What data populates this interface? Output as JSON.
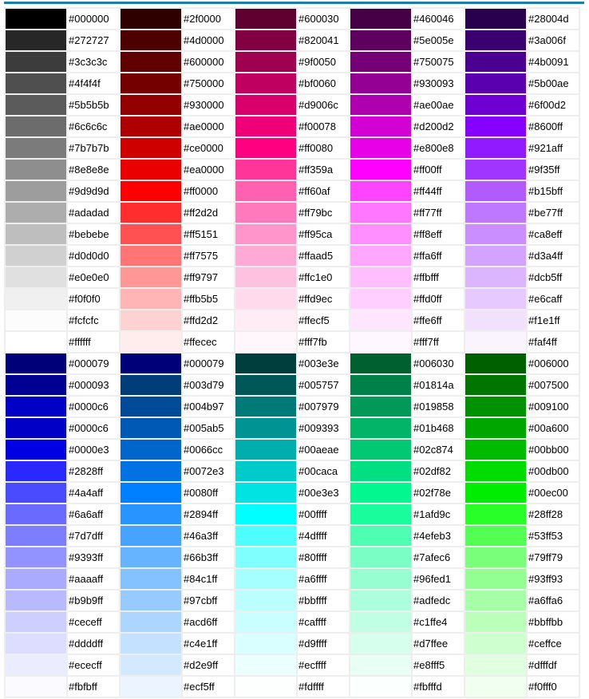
{
  "accent_color": "#1a7fa8",
  "sections": [
    {
      "columns": [
        [
          "#000000",
          "#272727",
          "#3c3c3c",
          "#4f4f4f",
          "#5b5b5b",
          "#6c6c6c",
          "#7b7b7b",
          "#8e8e8e",
          "#9d9d9d",
          "#adadad",
          "#bebebe",
          "#d0d0d0",
          "#e0e0e0",
          "#f0f0f0",
          "#fcfcfc",
          "#ffffff"
        ],
        [
          "#2f0000",
          "#4d0000",
          "#600000",
          "#750000",
          "#930000",
          "#ae0000",
          "#ce0000",
          "#ea0000",
          "#ff0000",
          "#ff2d2d",
          "#ff5151",
          "#ff7575",
          "#ff9797",
          "#ffb5b5",
          "#ffd2d2",
          "#ffecec"
        ],
        [
          "#600030",
          "#820041",
          "#9f0050",
          "#bf0060",
          "#d9006c",
          "#f00078",
          "#ff0080",
          "#ff359a",
          "#ff60af",
          "#ff79bc",
          "#ff95ca",
          "#ffaad5",
          "#ffc1e0",
          "#ffd9ec",
          "#ffecf5",
          "#fff7fb"
        ],
        [
          "#460046",
          "#5e005e",
          "#750075",
          "#930093",
          "#ae00ae",
          "#d200d2",
          "#e800e8",
          "#ff00ff",
          "#ff44ff",
          "#ff77ff",
          "#ff8eff",
          "#ffa6ff",
          "#ffbfff",
          "#ffd0ff",
          "#ffe6ff",
          "#fff7ff"
        ],
        [
          "#28004d",
          "#3a006f",
          "#4b0091",
          "#5b00ae",
          "#6f00d2",
          "#8600ff",
          "#921aff",
          "#9f35ff",
          "#b15bff",
          "#be77ff",
          "#ca8eff",
          "#d3a4ff",
          "#dcb5ff",
          "#e6caff",
          "#f1e1ff",
          "#faf4ff"
        ]
      ]
    },
    {
      "columns": [
        [
          "#000079",
          "#000093",
          "#0000c6",
          "#0000c6",
          "#0000e3",
          "#2828ff",
          "#4a4aff",
          "#6a6aff",
          "#7d7dff",
          "#9393ff",
          "#aaaaff",
          "#b9b9ff",
          "#ceceff",
          "#ddddff",
          "#ececff",
          "#fbfbff"
        ],
        [
          "#000079",
          "#003d79",
          "#004b97",
          "#005ab5",
          "#0066cc",
          "#0072e3",
          "#0080ff",
          "#2894ff",
          "#46a3ff",
          "#66b3ff",
          "#84c1ff",
          "#97cbff",
          "#acd6ff",
          "#c4e1ff",
          "#d2e9ff",
          "#ecf5ff"
        ],
        [
          "#003e3e",
          "#005757",
          "#007979",
          "#009393",
          "#00aeae",
          "#00caca",
          "#00e3e3",
          "#00ffff",
          "#4dffff",
          "#80ffff",
          "#a6ffff",
          "#bbffff",
          "#caffff",
          "#d9ffff",
          "#ecffff",
          "#fdffff"
        ],
        [
          "#006030",
          "#01814a",
          "#019858",
          "#01b468",
          "#02c874",
          "#02df82",
          "#02f78e",
          "#1afd9c",
          "#4efeb3",
          "#7afec6",
          "#96fed1",
          "#adfedc",
          "#c1ffe4",
          "#d7ffee",
          "#e8fff5",
          "#fbfffd"
        ],
        [
          "#006000",
          "#007500",
          "#009100",
          "#00a600",
          "#00bb00",
          "#00db00",
          "#00ec00",
          "#28ff28",
          "#53ff53",
          "#79ff79",
          "#93ff93",
          "#a6ffa6",
          "#bbffbb",
          "#ceffce",
          "#dfffdf",
          "#f0fff0"
        ]
      ]
    }
  ]
}
